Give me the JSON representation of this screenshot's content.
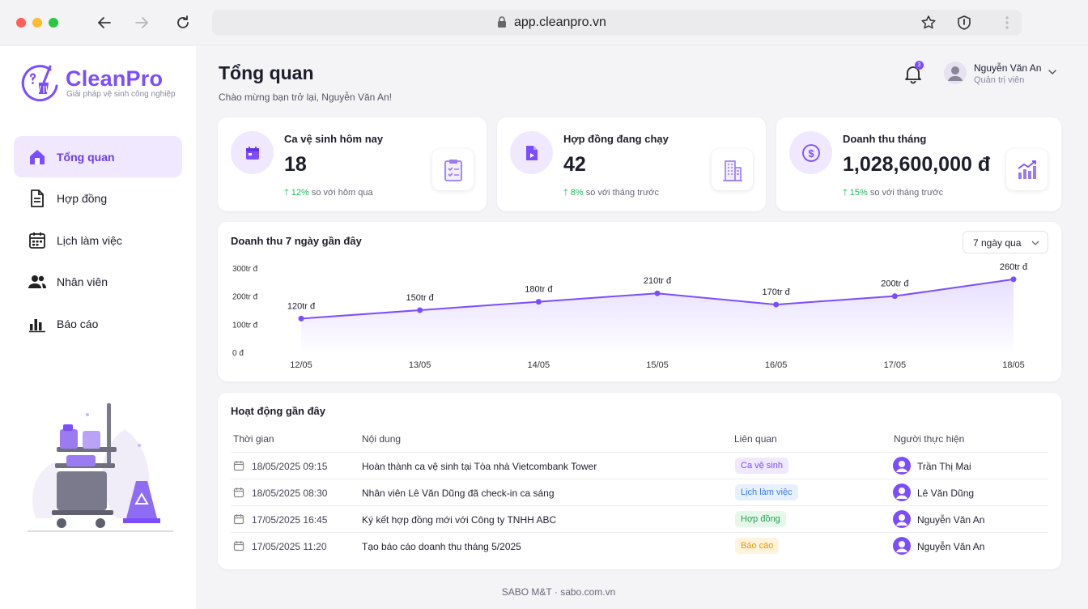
{
  "browser": {
    "url": "app.cleanpro.vn"
  },
  "brand": {
    "name": "CleanPro",
    "tagline": "Giải pháp vệ sinh công nghiệp",
    "accent": "#7c4dff"
  },
  "sidebar": {
    "items": [
      {
        "label": "Tổng quan",
        "icon": "home-icon",
        "active": true
      },
      {
        "label": "Hợp đồng",
        "icon": "document-icon",
        "active": false
      },
      {
        "label": "Lịch làm việc",
        "icon": "calendar-icon",
        "active": false
      },
      {
        "label": "Nhân viên",
        "icon": "people-icon",
        "active": false
      },
      {
        "label": "Báo cáo",
        "icon": "bar-chart-icon",
        "active": false
      }
    ]
  },
  "header": {
    "title": "Tổng quan",
    "subtitle": "Chào mừng bạn trở lại, Nguyễn Văn An!",
    "notifications": "3",
    "user_name": "Nguyễn Văn An",
    "user_role": "Quản trị viên"
  },
  "stats": [
    {
      "label": "Ca vệ sinh hôm nay",
      "value": "18",
      "change": "12%",
      "change_text": "so với hôm qua",
      "icon": "calendar-icon",
      "illus": "checklist-icon"
    },
    {
      "label": "Hợp đồng đang chạy",
      "value": "42",
      "change": "8%",
      "change_text": "so với tháng trước",
      "icon": "contract-icon",
      "illus": "building-icon"
    },
    {
      "label": "Doanh thu tháng",
      "value": "1,028,600,000 đ",
      "change": "15%",
      "change_text": "so với tháng trước",
      "icon": "dollar-icon",
      "illus": "growth-chart-icon"
    }
  ],
  "revenue_chart": {
    "title": "Doanh thu 7 ngày gần đây",
    "range_label": "7 ngày qua"
  },
  "chart_data": {
    "type": "area",
    "title": "Doanh thu 7 ngày gần đây",
    "categories": [
      "12/05",
      "13/05",
      "14/05",
      "15/05",
      "16/05",
      "17/05",
      "18/05"
    ],
    "values": [
      120,
      150,
      180,
      210,
      170,
      200,
      260
    ],
    "data_labels": [
      "120tr đ",
      "150tr đ",
      "180tr đ",
      "210tr đ",
      "170tr đ",
      "200tr đ",
      "260tr đ"
    ],
    "y_ticks": [
      0,
      100,
      200,
      300
    ],
    "y_tick_labels": [
      "0 đ",
      "100tr đ",
      "200tr đ",
      "300tr đ"
    ],
    "ylim": [
      0,
      300
    ],
    "grid": false,
    "color": "#7c4dff"
  },
  "activity": {
    "title": "Hoạt động gần đây",
    "columns": [
      "Thời gian",
      "Nội dung",
      "Liên quan",
      "Người thực hiện"
    ],
    "rows": [
      {
        "time": "18/05/2025 09:15",
        "content": "Hoàn thành ca vệ sinh tại Tòa nhà Vietcombank Tower",
        "tag": "Ca vệ sinh",
        "tag_bg": "#efe8ff",
        "tag_fg": "#7c4dff",
        "user": "Trần Thị Mai"
      },
      {
        "time": "18/05/2025 08:30",
        "content": "Nhân viên Lê Văn Dũng đã check-in ca sáng",
        "tag": "Lịch làm việc",
        "tag_bg": "#e6f0ff",
        "tag_fg": "#3d7bf0",
        "user": "Lê Văn Dũng"
      },
      {
        "time": "17/05/2025 16:45",
        "content": "Ký kết hợp đồng mới với Công ty TNHH ABC",
        "tag": "Hợp đồng",
        "tag_bg": "#e5f7ea",
        "tag_fg": "#22a04e",
        "user": "Nguyễn Văn An"
      },
      {
        "time": "17/05/2025 11:20",
        "content": "Tạo báo cáo doanh thu tháng 5/2025",
        "tag": "Báo cáo",
        "tag_bg": "#fff3dc",
        "tag_fg": "#e39a12",
        "user": "Nguyễn Văn An"
      }
    ]
  },
  "footer": "SABO M&T · sabo.com.vn"
}
